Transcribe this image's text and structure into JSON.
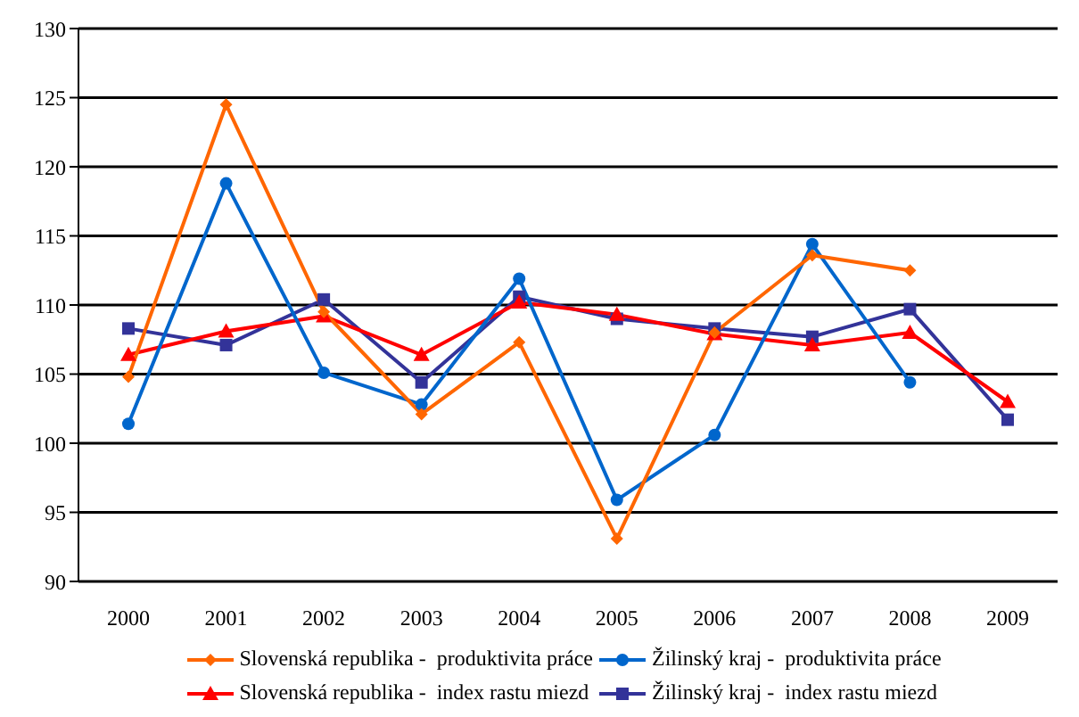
{
  "chart_data": {
    "type": "line",
    "categories": [
      "2000",
      "2001",
      "2002",
      "2003",
      "2004",
      "2005",
      "2006",
      "2007",
      "2008",
      "2009"
    ],
    "series": [
      {
        "name": "Slovenská republika -  produktivita práce",
        "color": "#ff6600",
        "marker": "diamond",
        "values": [
          104.8,
          124.5,
          109.5,
          102.1,
          107.3,
          93.1,
          108.0,
          113.6,
          112.5,
          null
        ]
      },
      {
        "name": "Žilinský kraj -  produktivita práce",
        "color": "#0066cc",
        "marker": "circle",
        "values": [
          101.4,
          118.8,
          105.1,
          102.8,
          111.9,
          95.9,
          100.6,
          114.4,
          104.4,
          null
        ]
      },
      {
        "name": "Slovenská republika -  index rastu miezd",
        "color": "#ff0000",
        "marker": "triangle",
        "values": [
          106.4,
          108.1,
          109.2,
          106.4,
          110.2,
          109.3,
          107.9,
          107.1,
          108.0,
          103.0
        ]
      },
      {
        "name": "Žilinský kraj -  index rastu miezd",
        "color": "#333399",
        "marker": "square",
        "values": [
          108.3,
          107.1,
          110.4,
          104.4,
          110.6,
          109.0,
          108.3,
          107.7,
          109.7,
          101.7
        ]
      }
    ],
    "ylim": [
      90,
      130
    ],
    "yticks": [
      90,
      95,
      100,
      105,
      110,
      115,
      120,
      125,
      130
    ],
    "grid": "y",
    "legend": "bottom",
    "line_style": "solid"
  }
}
